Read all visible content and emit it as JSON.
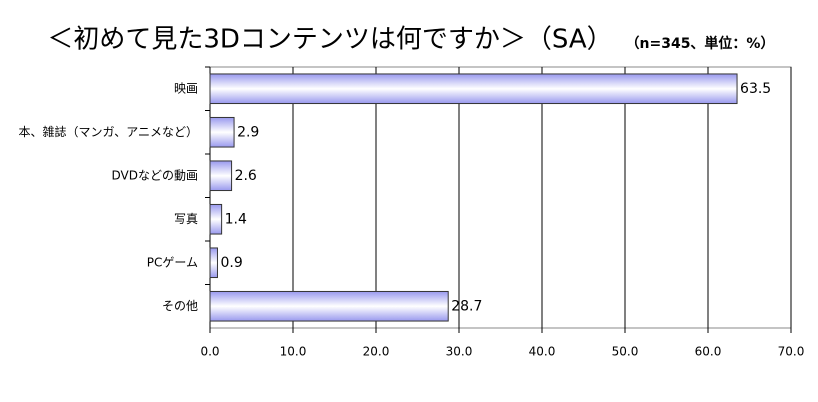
{
  "chart_data": {
    "type": "hbar",
    "title": "＜初めて見た3Dコンテンツは何ですか＞（SA）",
    "subtitle": "（n=345、単位：%）",
    "categories": [
      "映画",
      "本、雑誌（マンガ、アニメなど）",
      "DVDなどの動画",
      "写真",
      "PCゲーム",
      "その他"
    ],
    "values": [
      63.5,
      2.9,
      2.6,
      1.4,
      0.9,
      28.7
    ],
    "color": "#9999ee",
    "xlim": [
      0,
      70
    ],
    "xticks": [
      {
        "value": 0,
        "label": "0.0"
      },
      {
        "value": 10,
        "label": "10.0"
      },
      {
        "value": 20,
        "label": "20.0"
      },
      {
        "value": 30,
        "label": "30.0"
      },
      {
        "value": 40,
        "label": "40.0"
      },
      {
        "value": 50,
        "label": "50.0"
      },
      {
        "value": 60,
        "label": "60.0"
      },
      {
        "value": 70,
        "label": "70.0"
      }
    ],
    "grid": true
  }
}
